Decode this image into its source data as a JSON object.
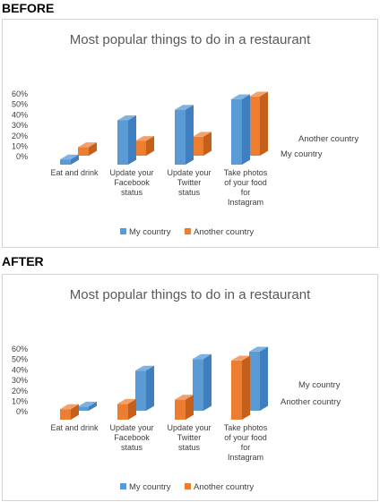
{
  "labels": {
    "before": "BEFORE",
    "after": "AFTER"
  },
  "colors": {
    "blue": "#5b9bd5",
    "blue_top": "#7fb2e3",
    "blue_side": "#3f7fbf",
    "orange": "#ed7d31",
    "orange_top": "#f4a06b",
    "orange_side": "#c45f1c"
  },
  "chart_data": [
    {
      "type": "bar",
      "variant": "3d-column",
      "title": "Most popular things to do in a restaurant",
      "categories": [
        "Eat and drink",
        "Update your Facebook status",
        "Update your Twitter status",
        "Take photos of your food for Instagram"
      ],
      "category_lines": [
        [
          "Eat and drink"
        ],
        [
          "Update your",
          "Facebook",
          "status"
        ],
        [
          "Update your",
          "Twitter",
          "status"
        ],
        [
          "Take photos",
          "of your food",
          "for",
          "Instagram"
        ]
      ],
      "y_ticks": [
        "60%",
        "50%",
        "40%",
        "30%",
        "20%",
        "10%",
        "0%"
      ],
      "ylim": [
        0,
        0.6
      ],
      "series_order_front_to_back": [
        "My country",
        "Another country"
      ],
      "series": [
        {
          "name": "My country",
          "values": [
            0.05,
            0.42,
            0.52,
            0.62
          ]
        },
        {
          "name": "Another country",
          "values": [
            0.08,
            0.14,
            0.18,
            0.56
          ]
        }
      ],
      "legend": [
        "My country",
        "Another country"
      ],
      "legend_position": "bottom"
    },
    {
      "type": "bar",
      "variant": "3d-column",
      "title": "Most popular things to do in a restaurant",
      "categories": [
        "Eat and drink",
        "Update your Facebook status",
        "Update your Twitter status",
        "Take photos of your food for Instagram"
      ],
      "category_lines": [
        [
          "Eat and drink"
        ],
        [
          "Update your",
          "Facebook",
          "status"
        ],
        [
          "Update your",
          "Twitter",
          "status"
        ],
        [
          "Take photos",
          "of your food",
          "for",
          "Instagram"
        ]
      ],
      "y_ticks": [
        "60%",
        "50%",
        "40%",
        "30%",
        "20%",
        "10%",
        "0%"
      ],
      "ylim": [
        0,
        0.6
      ],
      "series_order_front_to_back": [
        "Another country",
        "My country"
      ],
      "series": [
        {
          "name": "My country",
          "values": [
            0.04,
            0.38,
            0.49,
            0.56
          ]
        },
        {
          "name": "Another country",
          "values": [
            0.1,
            0.15,
            0.19,
            0.56
          ]
        }
      ],
      "legend": [
        "My country",
        "Another country"
      ],
      "legend_position": "bottom"
    }
  ]
}
